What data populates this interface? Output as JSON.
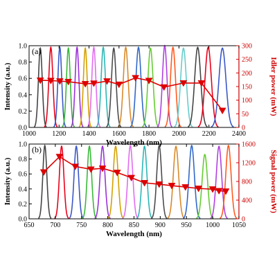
{
  "colors": {
    "power": "#dd0000",
    "right_axis": "#cc0000",
    "axis": "#000000",
    "peak_palette": [
      "#444444",
      "#e8001a",
      "#3a56c8",
      "#38b838",
      "#9b30d8",
      "#d4a000",
      "#e26cf0",
      "#2bb6b6",
      "#4b4b4b",
      "#d98a2a",
      "#3068c8",
      "#66cc33",
      "#b040e0",
      "#ff5a1f",
      "#66cccc"
    ]
  },
  "chart_data": [
    {
      "panel_label": "(a)",
      "type": "line",
      "xlabel": "Wavelength (nm)",
      "ylabel_left": "Intensity (a.u.)",
      "ylabel_right": "Idler power (mW)",
      "xlim": [
        1000,
        2400
      ],
      "xticks": [
        1000,
        1200,
        1400,
        1600,
        1800,
        2000,
        2200,
        2400
      ],
      "ylim_left": [
        0,
        1.0
      ],
      "yticks_left": [
        0.0,
        0.2,
        0.4,
        0.6,
        0.8,
        1.0
      ],
      "ylim_right": [
        0,
        300
      ],
      "yticks_right": [
        0,
        50,
        100,
        150,
        200,
        250,
        300
      ],
      "spectra": {
        "type": "area",
        "peaks": [
          {
            "center": 1075,
            "fwhm": 30,
            "amplitude": 0.97
          },
          {
            "center": 1145,
            "fwhm": 32,
            "amplitude": 0.98
          },
          {
            "center": 1205,
            "fwhm": 30,
            "amplitude": 0.98
          },
          {
            "center": 1262,
            "fwhm": 30,
            "amplitude": 0.97
          },
          {
            "center": 1320,
            "fwhm": 30,
            "amplitude": 0.98
          },
          {
            "center": 1375,
            "fwhm": 30,
            "amplitude": 0.97
          },
          {
            "center": 1432,
            "fwhm": 32,
            "amplitude": 0.98
          },
          {
            "center": 1495,
            "fwhm": 34,
            "amplitude": 0.98
          },
          {
            "center": 1565,
            "fwhm": 36,
            "amplitude": 0.97
          },
          {
            "center": 1645,
            "fwhm": 38,
            "amplitude": 0.98
          },
          {
            "center": 1730,
            "fwhm": 40,
            "amplitude": 0.98
          },
          {
            "center": 1810,
            "fwhm": 40,
            "amplitude": 0.97
          },
          {
            "center": 1905,
            "fwhm": 36,
            "amplitude": 1.0
          },
          {
            "center": 1960,
            "fwhm": 40,
            "amplitude": 0.98
          },
          {
            "center": 2030,
            "fwhm": 45,
            "amplitude": 0.97
          },
          {
            "center": 2125,
            "fwhm": 48,
            "amplitude": 0.98
          },
          {
            "center": 2195,
            "fwhm": 50,
            "amplitude": 0.98
          },
          {
            "center": 2290,
            "fwhm": 55,
            "amplitude": 0.97
          }
        ]
      },
      "power": {
        "type": "line",
        "axis": "right",
        "marker": "triangle-down",
        "x": [
          1075,
          1145,
          1205,
          1262,
          1375,
          1432,
          1520,
          1600,
          1710,
          1800,
          1900,
          2030,
          2150,
          2290
        ],
        "y": [
          173,
          172,
          170,
          168,
          160,
          162,
          170,
          158,
          182,
          172,
          148,
          163,
          163,
          62
        ]
      }
    },
    {
      "panel_label": "(b)",
      "type": "line",
      "xlabel": "Wavelength (nm)",
      "ylabel_left": "Intensity (a.u.)",
      "ylabel_right": "Signal power (mW)",
      "xlim": [
        650,
        1050
      ],
      "xticks": [
        650,
        700,
        750,
        800,
        850,
        900,
        950,
        1000,
        1050
      ],
      "ylim_left": [
        0,
        1.0
      ],
      "yticks_left": [
        0.0,
        0.2,
        0.4,
        0.6,
        0.8,
        1.0
      ],
      "ylim_right": [
        0,
        1600
      ],
      "yticks_right": [
        0,
        400,
        800,
        1200,
        1600
      ],
      "spectra": {
        "type": "area",
        "peaks": [
          {
            "center": 680,
            "fwhm": 9,
            "amplitude": 0.98
          },
          {
            "center": 712,
            "fwhm": 10,
            "amplitude": 0.97
          },
          {
            "center": 740,
            "fwhm": 10,
            "amplitude": 0.97
          },
          {
            "center": 765,
            "fwhm": 10,
            "amplitude": 0.97
          },
          {
            "center": 790,
            "fwhm": 11,
            "amplitude": 0.97
          },
          {
            "center": 815,
            "fwhm": 11,
            "amplitude": 0.97
          },
          {
            "center": 843,
            "fwhm": 11,
            "amplitude": 0.98
          },
          {
            "center": 870,
            "fwhm": 11,
            "amplitude": 0.97
          },
          {
            "center": 898,
            "fwhm": 11,
            "amplitude": 0.98
          },
          {
            "center": 930,
            "fwhm": 12,
            "amplitude": 0.97
          },
          {
            "center": 960,
            "fwhm": 12,
            "amplitude": 0.98
          },
          {
            "center": 985,
            "fwhm": 12,
            "amplitude": 0.86
          },
          {
            "center": 1012,
            "fwhm": 12,
            "amplitude": 0.97
          },
          {
            "center": 1030,
            "fwhm": 12,
            "amplitude": 0.98
          }
        ]
      },
      "power": {
        "type": "line",
        "axis": "right",
        "marker": "triangle-down",
        "x": [
          678,
          708,
          738,
          768,
          790,
          818,
          845,
          870,
          898,
          922,
          948,
          973,
          1000,
          1012,
          1025
        ],
        "y": [
          1000,
          1330,
          1120,
          1060,
          1080,
          990,
          880,
          770,
          740,
          710,
          680,
          650,
          635,
          600,
          590
        ]
      }
    }
  ]
}
